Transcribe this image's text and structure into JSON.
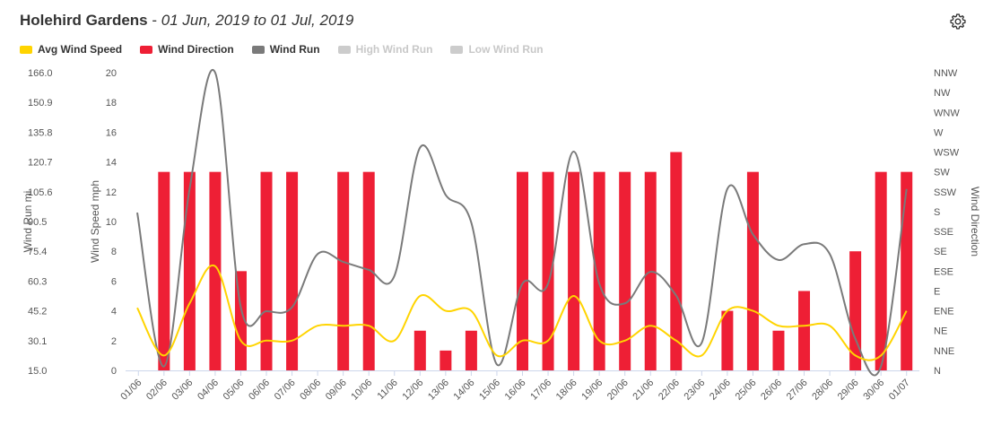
{
  "header": {
    "station": "Holehird Gardens",
    "separator": " - ",
    "range": "01 Jun, 2019 to 01 Jul, 2019",
    "settings_icon": "gear-icon"
  },
  "legend": [
    {
      "label": "Avg Wind Speed",
      "color": "#ffd400",
      "active": true
    },
    {
      "label": "Wind Direction",
      "color": "#ee1f35",
      "active": true
    },
    {
      "label": "Wind Run",
      "color": "#7a7a7a",
      "active": true
    },
    {
      "label": "High Wind Run",
      "color": "#cccccc",
      "active": false
    },
    {
      "label": "Low Wind Run",
      "color": "#cccccc",
      "active": false
    }
  ],
  "chart_data": {
    "type": "bar+line",
    "categories": [
      "01/06",
      "02/06",
      "03/06",
      "04/06",
      "05/06",
      "06/06",
      "07/06",
      "08/06",
      "09/06",
      "10/06",
      "11/06",
      "12/06",
      "13/06",
      "14/06",
      "15/06",
      "16/06",
      "17/06",
      "18/06",
      "19/06",
      "20/06",
      "21/06",
      "22/06",
      "23/06",
      "24/06",
      "25/06",
      "26/06",
      "27/06",
      "28/06",
      "29/06",
      "30/06",
      "01/07"
    ],
    "axes": {
      "wind_run": {
        "label": "Wind Run mi",
        "ticks": [
          "166.0",
          "150.9",
          "135.8",
          "120.7",
          "105.6",
          "90.5",
          "75.4",
          "60.3",
          "45.2",
          "30.1",
          "15.0"
        ],
        "range": [
          15.0,
          166.0
        ]
      },
      "wind_speed": {
        "label": "Wind Speed mph",
        "ticks": [
          "20",
          "18",
          "16",
          "14",
          "12",
          "10",
          "8",
          "6",
          "4",
          "2",
          "0"
        ],
        "range": [
          0,
          20
        ]
      },
      "wind_direction": {
        "label": "Wind Direction",
        "ticks": [
          "NNW",
          "NW",
          "WNW",
          "W",
          "WSW",
          "SW",
          "SSW",
          "S",
          "SSE",
          "SE",
          "ESE",
          "E",
          "ENE",
          "NE",
          "NNE",
          "N"
        ]
      }
    },
    "series": [
      {
        "name": "Wind Direction",
        "type": "bar",
        "axis": "wind_direction",
        "values": [
          null,
          "SW",
          "SW",
          "SW",
          "ESE",
          "SW",
          "SW",
          null,
          "SW",
          "SW",
          null,
          "NE",
          "NNE",
          "NE",
          null,
          "SW",
          "SW",
          "SW",
          "SW",
          "SW",
          "SW",
          "WSW",
          null,
          "ENE",
          "SW",
          "NE",
          "E",
          null,
          "SE",
          "SW",
          "SW"
        ]
      },
      {
        "name": "Avg Wind Speed",
        "type": "line",
        "axis": "wind_speed",
        "values": [
          4.2,
          1,
          4.5,
          7,
          2,
          2,
          2,
          3,
          3,
          3,
          2,
          5,
          4,
          4,
          1,
          2,
          2,
          5,
          2,
          2,
          3,
          2,
          1,
          4,
          4,
          3,
          3,
          3,
          1,
          1,
          4
        ]
      },
      {
        "name": "Wind Run",
        "type": "line",
        "axis": "wind_run",
        "values": [
          95,
          17,
          107,
          166,
          47,
          45,
          47,
          74,
          70,
          66,
          63,
          128,
          104,
          90,
          18,
          59,
          59,
          126,
          59,
          49,
          65,
          53,
          29,
          107,
          84,
          71,
          79,
          74,
          31,
          17,
          107
        ]
      }
    ]
  }
}
